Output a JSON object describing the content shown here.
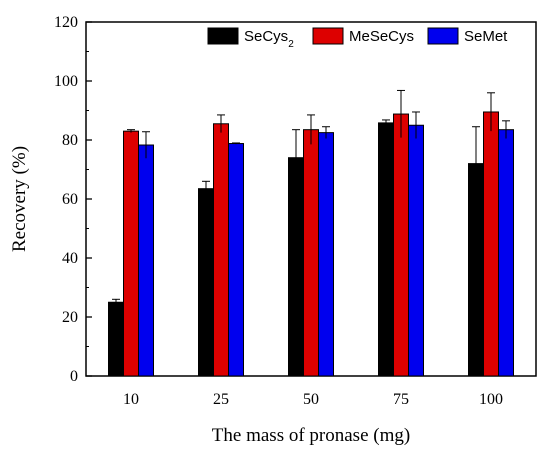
{
  "chart_data": {
    "type": "bar",
    "xlabel": "The mass of pronase (mg)",
    "ylabel": "Recovery (%)",
    "categories": [
      "10",
      "25",
      "50",
      "75",
      "100"
    ],
    "ylim": [
      0,
      120
    ],
    "yticks": [
      "0",
      "20",
      "40",
      "60",
      "80",
      "100",
      "120"
    ],
    "legend_position": "top-right",
    "series": [
      {
        "name": "SeCys",
        "name_sub": "2",
        "color": "#000000",
        "values": [
          25,
          63.5,
          74,
          85.8,
          72
        ],
        "errors": [
          1,
          2.5,
          9.5,
          1,
          12.5
        ]
      },
      {
        "name": "MeSeCys",
        "name_sub": "",
        "color": "#dd0000",
        "values": [
          83,
          85.5,
          83.5,
          88.8,
          89.5
        ],
        "errors": [
          0.5,
          3,
          5,
          8,
          6.5
        ]
      },
      {
        "name": "SeMet",
        "name_sub": "",
        "color": "#0000ee",
        "values": [
          78.3,
          78.8,
          82.5,
          85,
          83.5
        ],
        "errors": [
          4.5,
          0.2,
          2,
          4.5,
          3
        ]
      }
    ]
  }
}
